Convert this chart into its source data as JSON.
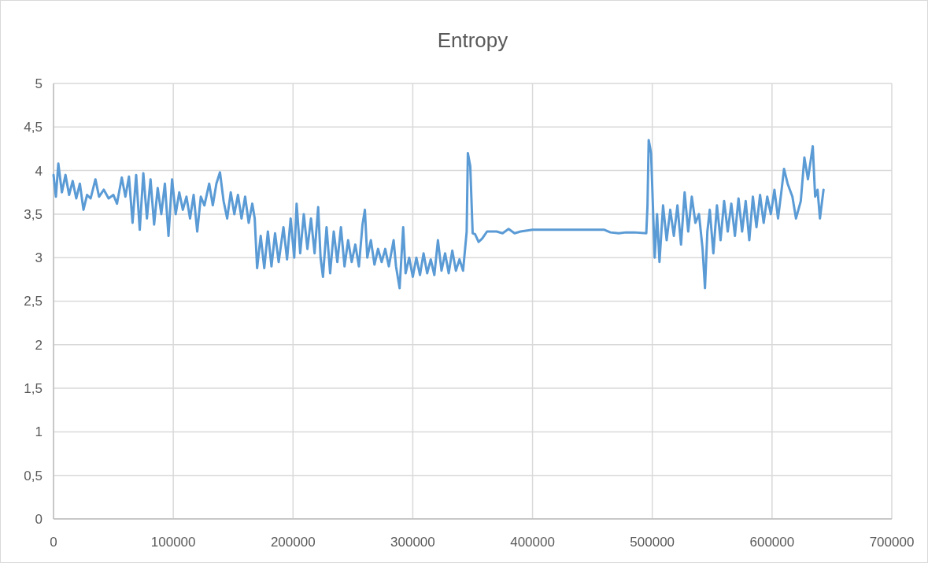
{
  "chart_data": {
    "type": "line",
    "title": "Entropy",
    "grid": true,
    "xlim": [
      0,
      700000
    ],
    "xticks": [
      0,
      100000,
      200000,
      300000,
      400000,
      500000,
      600000,
      700000
    ],
    "ylim": [
      0,
      5
    ],
    "yticks": [
      0,
      {
        "value": 0.5,
        "label": "0,5"
      },
      1,
      {
        "value": 1.5,
        "label": "1,5"
      },
      2,
      {
        "value": 2.5,
        "label": "2,5"
      },
      3,
      {
        "value": 3.5,
        "label": "3,5"
      },
      4,
      {
        "value": 4.5,
        "label": "4,5"
      },
      5
    ],
    "series": [
      {
        "color": "#5b9bd5",
        "x": [
          0,
          2000,
          4000,
          7000,
          10000,
          13000,
          16000,
          19000,
          22000,
          25000,
          28000,
          31000,
          35000,
          38000,
          42000,
          46000,
          50000,
          53000,
          57000,
          60000,
          63000,
          66000,
          69000,
          72000,
          75000,
          78000,
          81000,
          84000,
          87000,
          90000,
          93000,
          96000,
          99000,
          102000,
          105000,
          108000,
          111000,
          114000,
          117000,
          120000,
          123000,
          126000,
          130000,
          133000,
          136000,
          139000,
          142000,
          145000,
          148000,
          151000,
          154000,
          157000,
          160000,
          163000,
          166000,
          168000,
          170000,
          173000,
          176000,
          179000,
          182000,
          185000,
          188000,
          192000,
          195000,
          198000,
          201000,
          203000,
          206000,
          209000,
          212000,
          215000,
          218000,
          221000,
          223000,
          225000,
          228000,
          231000,
          234000,
          237000,
          240000,
          243000,
          246000,
          249000,
          252000,
          255000,
          258000,
          260000,
          262000,
          265000,
          268000,
          271000,
          274000,
          277000,
          280000,
          284000,
          286000,
          289000,
          292000,
          294000,
          297000,
          300000,
          303000,
          306000,
          309000,
          312000,
          315000,
          318000,
          321000,
          324000,
          327000,
          330000,
          333000,
          336000,
          339000,
          342000,
          345000,
          346000,
          348000,
          350000,
          352000,
          355000,
          358000,
          362000,
          370000,
          375000,
          380000,
          385000,
          390000,
          400000,
          460000,
          465000,
          472000,
          478000,
          485000,
          495000,
          496000,
          497000,
          499000,
          501000,
          502000,
          504000,
          506000,
          509000,
          512000,
          515000,
          518000,
          521000,
          524000,
          527000,
          530000,
          533000,
          536000,
          539000,
          542000,
          544000,
          546000,
          548000,
          551000,
          554000,
          557000,
          560000,
          563000,
          566000,
          569000,
          572000,
          575000,
          578000,
          581000,
          584000,
          587000,
          590000,
          593000,
          596000,
          599000,
          602000,
          605000,
          608000,
          610000,
          613000,
          617000,
          620000,
          624000,
          627000,
          630000,
          634000,
          636000,
          638000,
          640000,
          643000
        ],
        "values": [
          3.95,
          3.7,
          4.08,
          3.75,
          3.95,
          3.72,
          3.88,
          3.68,
          3.85,
          3.55,
          3.72,
          3.68,
          3.9,
          3.7,
          3.78,
          3.68,
          3.72,
          3.62,
          3.92,
          3.7,
          3.93,
          3.4,
          3.95,
          3.32,
          3.97,
          3.45,
          3.9,
          3.38,
          3.8,
          3.5,
          3.85,
          3.25,
          3.9,
          3.5,
          3.75,
          3.55,
          3.7,
          3.45,
          3.72,
          3.3,
          3.7,
          3.6,
          3.85,
          3.6,
          3.85,
          3.98,
          3.65,
          3.45,
          3.75,
          3.5,
          3.72,
          3.45,
          3.7,
          3.4,
          3.62,
          3.45,
          2.88,
          3.25,
          2.88,
          3.3,
          2.9,
          3.28,
          2.95,
          3.35,
          2.98,
          3.45,
          3.0,
          3.62,
          3.05,
          3.5,
          3.1,
          3.45,
          3.05,
          3.58,
          3.0,
          2.78,
          3.35,
          2.82,
          3.3,
          2.95,
          3.35,
          2.9,
          3.2,
          2.95,
          3.15,
          2.9,
          3.38,
          3.55,
          3.0,
          3.2,
          2.92,
          3.1,
          2.95,
          3.1,
          2.9,
          3.2,
          2.9,
          2.65,
          3.35,
          2.82,
          3.0,
          2.78,
          3.0,
          2.8,
          3.05,
          2.82,
          2.98,
          2.8,
          3.2,
          2.85,
          3.05,
          2.82,
          3.08,
          2.85,
          2.98,
          2.85,
          3.3,
          4.2,
          4.05,
          3.28,
          3.27,
          3.18,
          3.22,
          3.3,
          3.3,
          3.28,
          3.33,
          3.28,
          3.3,
          3.32,
          3.32,
          3.29,
          3.28,
          3.29,
          3.29,
          3.28,
          3.6,
          4.35,
          4.2,
          3.4,
          3.0,
          3.5,
          2.95,
          3.6,
          3.2,
          3.55,
          3.25,
          3.6,
          3.15,
          3.75,
          3.3,
          3.7,
          3.4,
          3.5,
          3.1,
          2.65,
          3.3,
          3.55,
          3.05,
          3.6,
          3.2,
          3.65,
          3.3,
          3.62,
          3.25,
          3.68,
          3.3,
          3.65,
          3.2,
          3.7,
          3.35,
          3.72,
          3.4,
          3.7,
          3.5,
          3.78,
          3.45,
          3.78,
          4.02,
          3.85,
          3.7,
          3.45,
          3.65,
          4.15,
          3.9,
          4.28,
          3.7,
          3.78,
          3.45,
          3.78
        ]
      }
    ]
  }
}
